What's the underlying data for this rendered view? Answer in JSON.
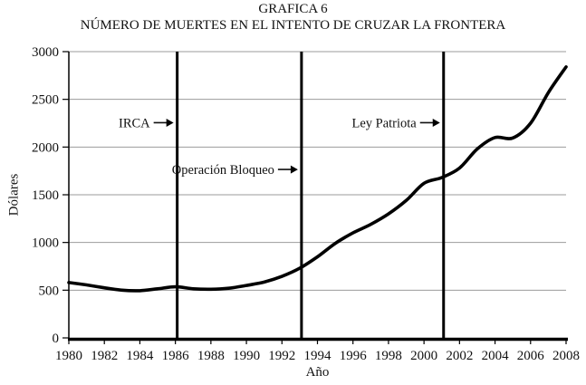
{
  "chart_data": {
    "type": "line",
    "title": "GRAFICA 6",
    "subtitle": "NÚMERO DE MUERTES EN EL INTENTO DE CRUZAR LA FRONTERA",
    "xlabel": "Año",
    "ylabel": "Dólares",
    "x": [
      1980,
      1981,
      1982,
      1983,
      1984,
      1985,
      1986,
      1987,
      1988,
      1989,
      1990,
      1991,
      1992,
      1993,
      1994,
      1995,
      1996,
      1997,
      1998,
      1999,
      2000,
      2001,
      2002,
      2003,
      2004,
      2005,
      2006,
      2007,
      2008
    ],
    "values": [
      580,
      555,
      525,
      500,
      495,
      515,
      535,
      515,
      510,
      520,
      550,
      585,
      645,
      730,
      850,
      990,
      1100,
      1190,
      1300,
      1440,
      1620,
      1680,
      1780,
      1980,
      2100,
      2095,
      2250,
      2570,
      2840
    ],
    "xlim": [
      1980,
      2008
    ],
    "ylim": [
      0,
      3000
    ],
    "x_ticks": [
      1980,
      1982,
      1984,
      1986,
      1988,
      1990,
      1992,
      1994,
      1996,
      1998,
      2000,
      2002,
      2004,
      2006,
      2008
    ],
    "y_ticks": [
      0,
      500,
      1000,
      1500,
      2000,
      2500,
      3000
    ],
    "grid": "horizontal",
    "legend": "none",
    "events": [
      {
        "year": 1986,
        "label": "IRCA",
        "label_value": 2255
      },
      {
        "year": 1993,
        "label": "Operación Bloqueo",
        "label_value": 1765
      },
      {
        "year": 2001,
        "label": "Ley Patriota",
        "label_value": 2255
      }
    ],
    "colors": {
      "line": "#000000",
      "grid": "#9b9b9b",
      "axis": "#000000",
      "event_line": "#000000",
      "background": "#ffffff",
      "text": "#111111"
    }
  }
}
